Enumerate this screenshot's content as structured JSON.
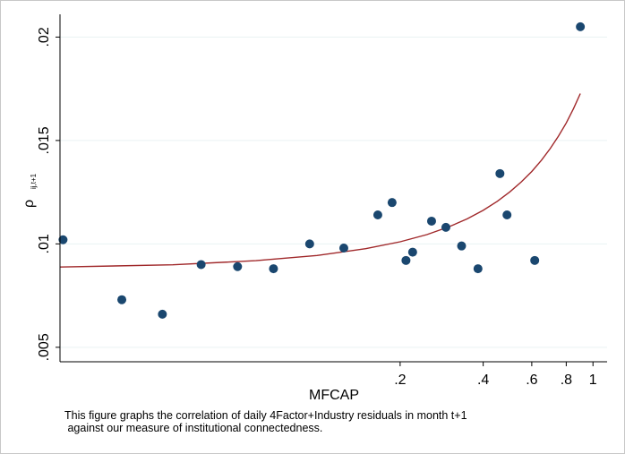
{
  "chart_data": {
    "type": "scatter",
    "xlabel": "MFCAP",
    "ylabel_main": "ρ",
    "ylabel_sub": "ij,t+1",
    "x_scale": "log",
    "x_ticks": [
      {
        "value": 0.2,
        "label": ".2"
      },
      {
        "value": 0.4,
        "label": ".4"
      },
      {
        "value": 0.6,
        "label": ".6"
      },
      {
        "value": 0.8,
        "label": ".8"
      },
      {
        "value": 1.0,
        "label": "1"
      }
    ],
    "y_ticks": [
      {
        "value": 0.005,
        "label": ".005"
      },
      {
        "value": 0.01,
        "label": ".01"
      },
      {
        "value": 0.015,
        "label": ".015"
      },
      {
        "value": 0.02,
        "label": ".02"
      }
    ],
    "xlim": [
      0.0117,
      1.125
    ],
    "ylim": [
      0.0043,
      0.0211
    ],
    "grid": true,
    "colors": {
      "points": "#1a476f",
      "fit": "#a0282a",
      "grid": "#eaf2f3",
      "axis": "#000000"
    },
    "series": [
      {
        "type": "scatter",
        "points": [
          {
            "x": 0.012,
            "y": 0.0102
          },
          {
            "x": 0.0196,
            "y": 0.0073
          },
          {
            "x": 0.0275,
            "y": 0.0066
          },
          {
            "x": 0.038,
            "y": 0.009
          },
          {
            "x": 0.0515,
            "y": 0.0089
          },
          {
            "x": 0.0695,
            "y": 0.0088
          },
          {
            "x": 0.094,
            "y": 0.01
          },
          {
            "x": 0.125,
            "y": 0.0098
          },
          {
            "x": 0.166,
            "y": 0.0114
          },
          {
            "x": 0.222,
            "y": 0.0096
          },
          {
            "x": 0.293,
            "y": 0.0108
          },
          {
            "x": 0.383,
            "y": 0.0088
          },
          {
            "x": 0.488,
            "y": 0.0114
          },
          {
            "x": 0.615,
            "y": 0.0092
          },
          {
            "x": 0.187,
            "y": 0.012
          },
          {
            "x": 0.21,
            "y": 0.0092
          },
          {
            "x": 0.26,
            "y": 0.0111
          },
          {
            "x": 0.334,
            "y": 0.0099
          },
          {
            "x": 0.46,
            "y": 0.0134
          },
          {
            "x": 0.9,
            "y": 0.0205
          }
        ]
      },
      {
        "type": "line",
        "x": [
          0.0117,
          0.03,
          0.06,
          0.1,
          0.15,
          0.2,
          0.25,
          0.3,
          0.35,
          0.4,
          0.45,
          0.5,
          0.55,
          0.6,
          0.65,
          0.7,
          0.75,
          0.8,
          0.85,
          0.9
        ],
        "y": [
          0.00888,
          0.00899,
          0.00919,
          0.00944,
          0.00977,
          0.0101,
          0.01045,
          0.01082,
          0.01121,
          0.01162,
          0.01206,
          0.01252,
          0.013,
          0.0135,
          0.01404,
          0.01461,
          0.01521,
          0.01585,
          0.01654,
          0.01727
        ]
      }
    ]
  },
  "caption": {
    "line1": "This figure graphs the correlation of daily 4Factor+Industry residuals in month t+1",
    "line2": " against our measure of institutional connectedness."
  }
}
